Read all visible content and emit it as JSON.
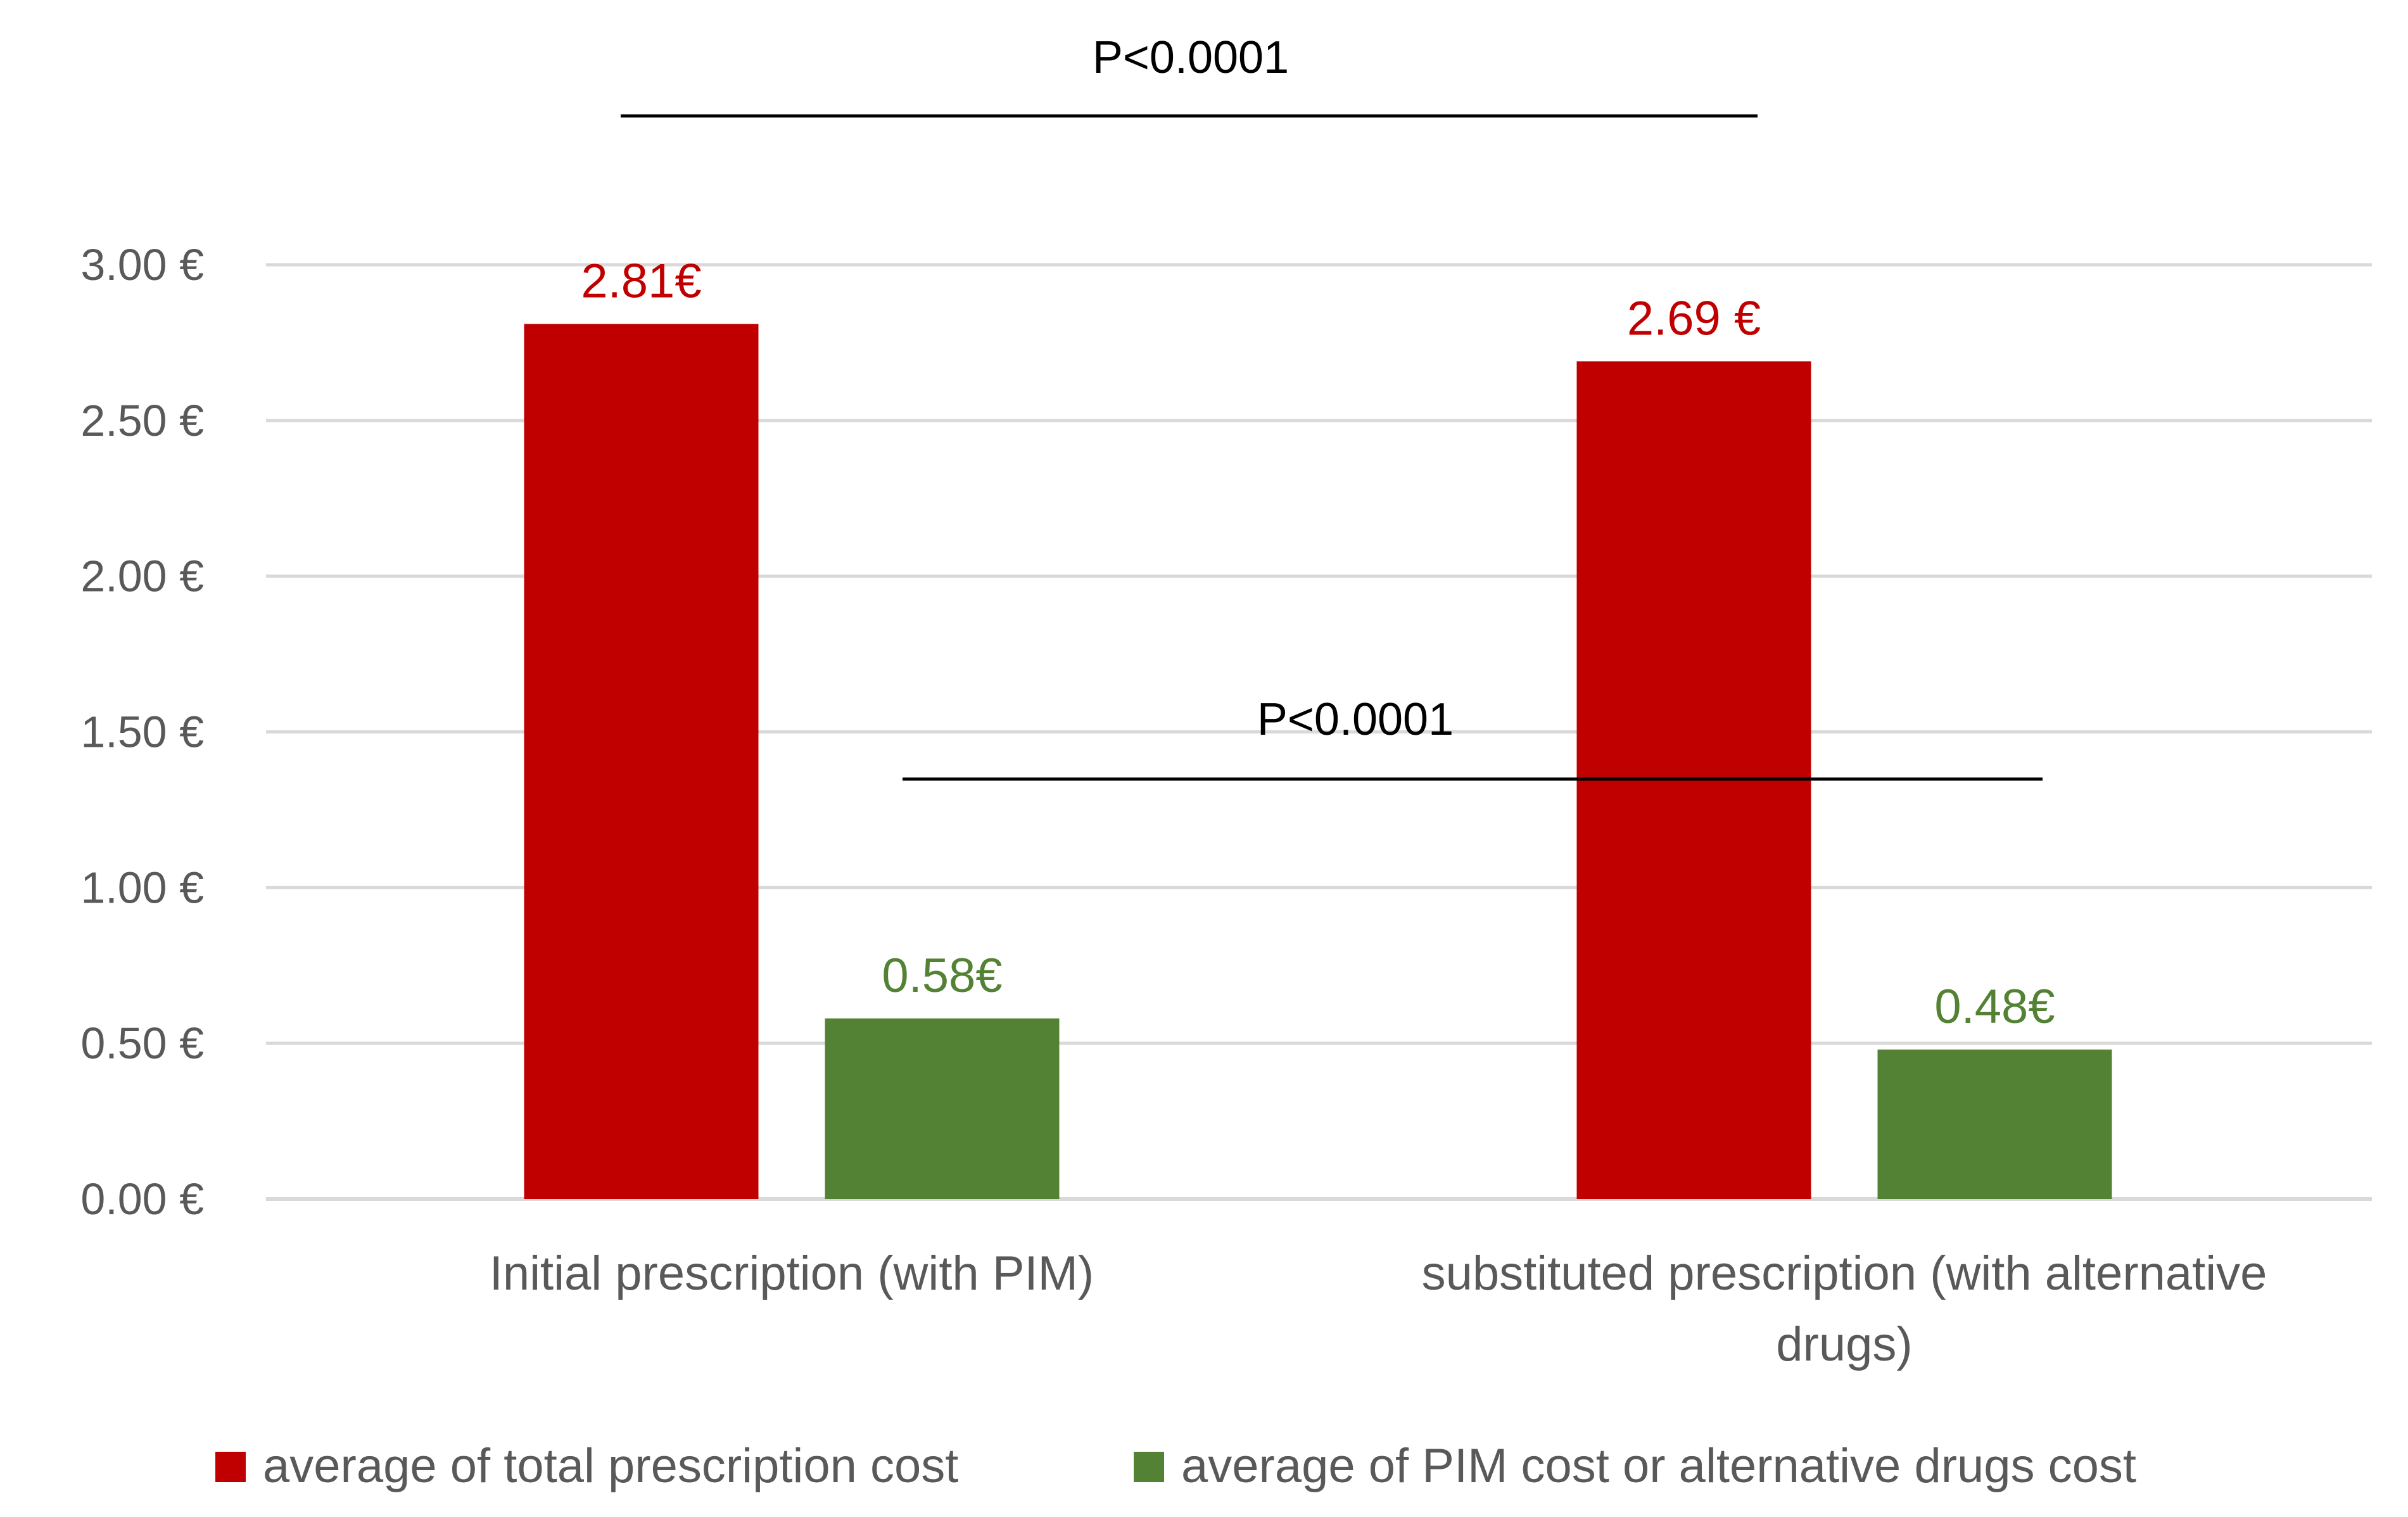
{
  "chart_data": {
    "type": "bar",
    "title": "",
    "xlabel": "",
    "ylabel": "",
    "ylim": [
      0,
      3
    ],
    "y_ticks": [
      0,
      0.5,
      1,
      1.5,
      2,
      2.5,
      3
    ],
    "y_tick_labels": [
      "0.00 €",
      "0.50 €",
      "1.00 €",
      "1.50 €",
      "2.00 €",
      "2.50 €",
      "3.00 €"
    ],
    "grid": true,
    "categories": [
      [
        "Initial prescription (with PIM)"
      ],
      [
        "substituted prescription (with alternative",
        "drugs)"
      ]
    ],
    "series": [
      {
        "name": "average of total prescription cost",
        "color": "#c00000",
        "values": [
          2.81,
          2.69
        ],
        "labels": [
          "2.81€",
          "2.69 €"
        ]
      },
      {
        "name": "average of PIM cost or alternative drugs cost",
        "color": "#548235",
        "values": [
          0.58,
          0.48
        ],
        "labels": [
          "0.58€",
          "0.48€"
        ]
      }
    ],
    "legend_position": "bottom",
    "annotations": [
      {
        "text": "P<0.0001",
        "compares": "average of total prescription cost: Initial vs substituted"
      },
      {
        "text": "P<0.0001",
        "compares": "average of PIM cost or alternative drugs cost: Initial vs substituted"
      }
    ]
  }
}
